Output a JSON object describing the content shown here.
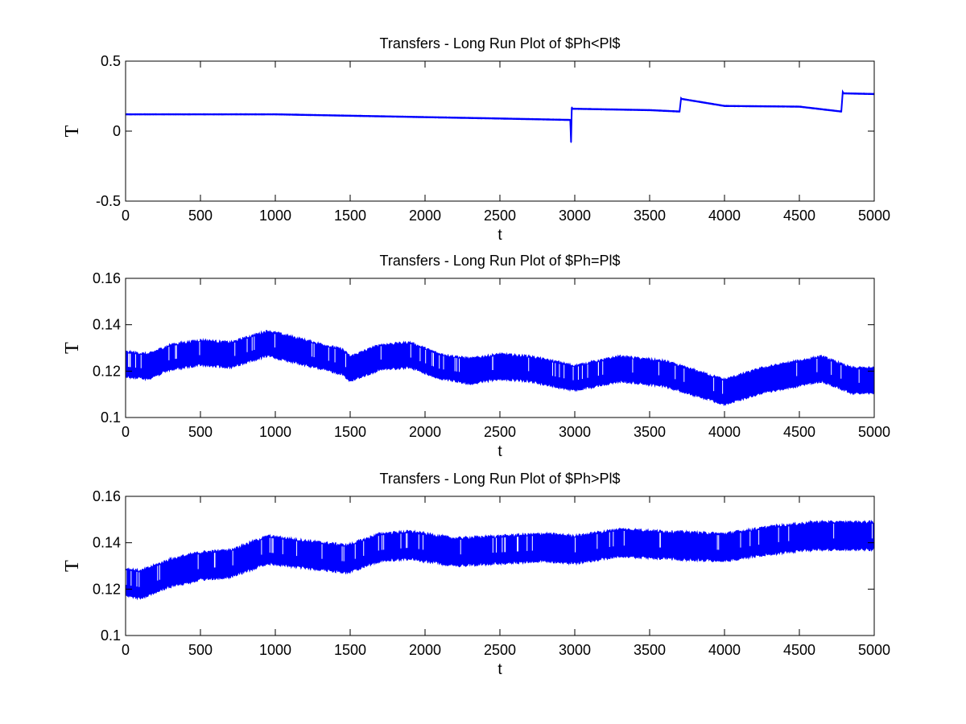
{
  "chart_data": [
    {
      "type": "line",
      "title": "Transfers - Long Run Plot of $Ph<Pl$",
      "xlabel": "t",
      "ylabel": "T",
      "xlim": [
        0,
        5000
      ],
      "ylim": [
        -0.5,
        0.5
      ],
      "xticks": [
        "0",
        "500",
        "1000",
        "1500",
        "2000",
        "2500",
        "3000",
        "3500",
        "4000",
        "4500",
        "5000"
      ],
      "yticks": [
        "-0.5",
        "0",
        "0.5"
      ],
      "grid": false,
      "band_width": 0.008,
      "series": [
        {
          "color": "#0000ff",
          "x": [
            0,
            500,
            1000,
            1500,
            2000,
            2500,
            2970,
            2975,
            2980,
            2985,
            3500,
            3700,
            3710,
            3715,
            4000,
            4500,
            4780,
            4790,
            4795,
            5000
          ],
          "values": [
            0.12,
            0.12,
            0.12,
            0.11,
            0.1,
            0.09,
            0.08,
            -0.08,
            0.17,
            0.16,
            0.15,
            0.14,
            0.235,
            0.23,
            0.18,
            0.175,
            0.14,
            0.28,
            0.27,
            0.265
          ]
        }
      ]
    },
    {
      "type": "line",
      "title": "Transfers - Long Run Plot of $Ph=Pl$",
      "xlabel": "t",
      "ylabel": "T",
      "xlim": [
        0,
        5000
      ],
      "ylim": [
        0.1,
        0.16
      ],
      "xticks": [
        "0",
        "500",
        "1000",
        "1500",
        "2000",
        "2500",
        "3000",
        "3500",
        "4000",
        "4500",
        "5000"
      ],
      "yticks": [
        "0.1",
        "0.12",
        "0.14",
        "0.16"
      ],
      "grid": false,
      "band_width": 0.0105,
      "series": [
        {
          "color": "#0000ff",
          "x": [
            0,
            150,
            300,
            500,
            700,
            950,
            1200,
            1450,
            1500,
            1700,
            1900,
            2100,
            2300,
            2500,
            2700,
            3000,
            3300,
            3600,
            3800,
            4000,
            4250,
            4650,
            4850,
            5000
          ],
          "values": [
            0.123,
            0.122,
            0.126,
            0.128,
            0.127,
            0.132,
            0.128,
            0.124,
            0.121,
            0.126,
            0.127,
            0.122,
            0.12,
            0.122,
            0.121,
            0.117,
            0.121,
            0.119,
            0.115,
            0.111,
            0.116,
            0.121,
            0.116,
            0.116
          ]
        }
      ]
    },
    {
      "type": "line",
      "title": "Transfers - Long Run Plot of $Ph>Pl$",
      "xlabel": "t",
      "ylabel": "T",
      "xlim": [
        0,
        5000
      ],
      "ylim": [
        0.1,
        0.16
      ],
      "xticks": [
        "0",
        "500",
        "1000",
        "1500",
        "2000",
        "2500",
        "3000",
        "3500",
        "4000",
        "4500",
        "5000"
      ],
      "yticks": [
        "0.1",
        "0.12",
        "0.14",
        "0.16"
      ],
      "grid": false,
      "band_width": 0.0115,
      "series": [
        {
          "color": "#0000ff",
          "x": [
            0,
            100,
            300,
            500,
            700,
            950,
            1200,
            1480,
            1700,
            1900,
            2200,
            2500,
            2800,
            3000,
            3300,
            3600,
            4000,
            4300,
            4600,
            5000
          ],
          "values": [
            0.123,
            0.122,
            0.127,
            0.13,
            0.131,
            0.137,
            0.135,
            0.133,
            0.138,
            0.139,
            0.136,
            0.137,
            0.138,
            0.137,
            0.14,
            0.139,
            0.138,
            0.141,
            0.143,
            0.143
          ]
        }
      ]
    }
  ]
}
